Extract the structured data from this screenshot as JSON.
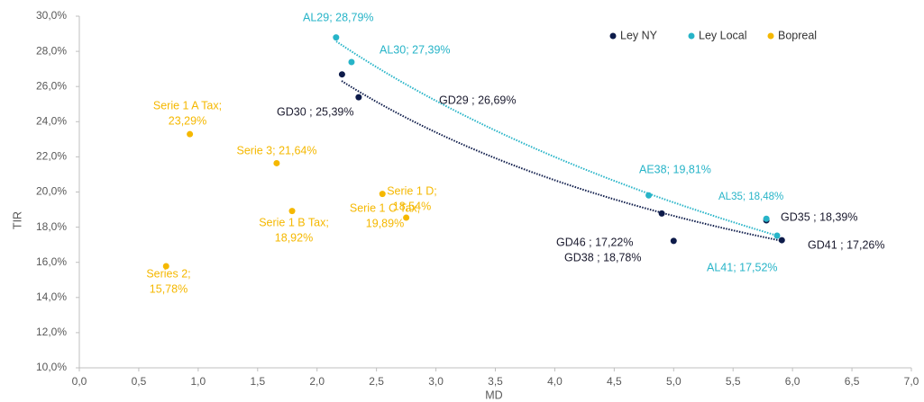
{
  "chart_data": {
    "type": "scatter",
    "x_label": "MD",
    "y_label": "TIR",
    "xlim": [
      0,
      7
    ],
    "ylim": [
      10,
      30
    ],
    "xticks": [
      {
        "value": 0,
        "label": "0,0"
      },
      {
        "value": 0.5,
        "label": "0,5"
      },
      {
        "value": 1,
        "label": "1,0"
      },
      {
        "value": 1.5,
        "label": "1,5"
      },
      {
        "value": 2,
        "label": "2,0"
      },
      {
        "value": 2.5,
        "label": "2,5"
      },
      {
        "value": 3,
        "label": "3,0"
      },
      {
        "value": 3.5,
        "label": "3,5"
      },
      {
        "value": 4,
        "label": "4,0"
      },
      {
        "value": 4.5,
        "label": "4,5"
      },
      {
        "value": 5,
        "label": "5,0"
      },
      {
        "value": 5.5,
        "label": "5,5"
      },
      {
        "value": 6,
        "label": "6,0"
      },
      {
        "value": 6.5,
        "label": "6,5"
      },
      {
        "value": 7,
        "label": "7,0"
      }
    ],
    "yticks": [
      {
        "value": 10,
        "label": "10,0%"
      },
      {
        "value": 12,
        "label": "12,0%"
      },
      {
        "value": 14,
        "label": "14,0%"
      },
      {
        "value": 16,
        "label": "16,0%"
      },
      {
        "value": 18,
        "label": "18,0%"
      },
      {
        "value": 20,
        "label": "20,0%"
      },
      {
        "value": 22,
        "label": "22,0%"
      },
      {
        "value": 24,
        "label": "24,0%"
      },
      {
        "value": 26,
        "label": "26,0%"
      },
      {
        "value": 28,
        "label": "28,0%"
      },
      {
        "value": 30,
        "label": "30,0%"
      }
    ],
    "legend": "top-right",
    "series": [
      {
        "name": "Ley NY",
        "color": "#0d1b4a",
        "x": [
          2.21,
          2.35,
          4.9,
          5.0,
          5.78,
          5.91
        ],
        "values": [
          26.69,
          25.39,
          18.78,
          17.22,
          18.39,
          17.26
        ],
        "value_labels": [
          [
            "GD29 ; 26,69%"
          ],
          [
            "GD30 ; 25,39%"
          ],
          [
            "GD38 ; 18,78%"
          ],
          [
            "GD46 ; 17,22%"
          ],
          [
            "GD35 ; 18,39%"
          ],
          [
            "GD41 ; 17,26%"
          ]
        ]
      },
      {
        "name": "Ley Local",
        "color": "#27b4c8",
        "x": [
          2.16,
          2.29,
          4.79,
          5.78,
          5.87
        ],
        "values": [
          28.79,
          27.39,
          19.81,
          18.48,
          17.52
        ],
        "value_labels": [
          [
            "AL29; 28,79%"
          ],
          [
            "AL30; 27,39%"
          ],
          [
            "AE38; 19,81%"
          ],
          [
            "AL35; 18,48%"
          ],
          [
            "AL41; 17,52%"
          ]
        ]
      },
      {
        "name": "Bopreal",
        "color": "#f5b800",
        "x": [
          0.93,
          1.66,
          1.79,
          2.55,
          2.75,
          0.73
        ],
        "values": [
          23.29,
          21.64,
          18.92,
          19.89,
          18.54,
          15.78
        ],
        "value_labels": [
          [
            "Serie 1 A Tax;",
            "23,29%"
          ],
          [
            "Serie 3; 21,64%"
          ],
          [
            "Serie 1 B Tax;",
            "18,92%"
          ],
          [
            "Serie 1 C Tax;",
            "19,89%"
          ],
          [
            "Serie 1 D;",
            "18,54%"
          ],
          [
            "Series 2;",
            "15,78%"
          ]
        ]
      }
    ]
  }
}
